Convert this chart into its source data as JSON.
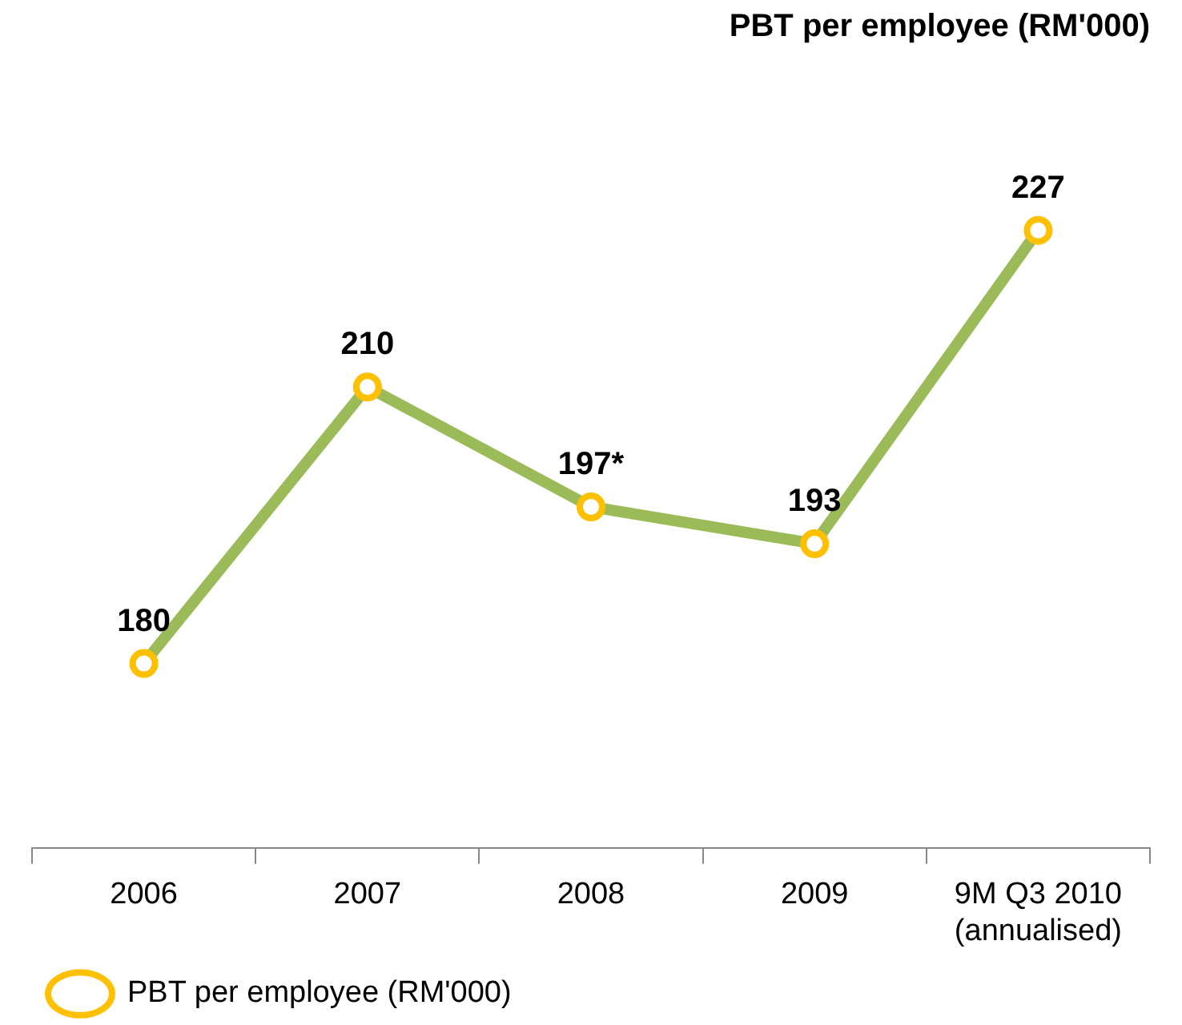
{
  "chart_data": {
    "type": "line",
    "title": "PBT per employee (RM'000)",
    "categories": [
      "2006",
      "2007",
      "2008",
      "2009",
      "9M Q3 2010\n(annualised)"
    ],
    "series": [
      {
        "name": "PBT per employee (RM'000)",
        "color": "#9bbb59",
        "colors": [
          "#ffc000",
          "#ffc000",
          "#ffc000",
          "#ffc000",
          "#ffc000"
        ],
        "values": [
          180,
          210,
          197,
          193,
          227
        ],
        "value_labels": [
          "180",
          "210",
          "197*",
          "193",
          "227"
        ]
      }
    ],
    "tick_labels": "x",
    "marker": "circle",
    "legend": "bottom",
    "grid": false
  }
}
